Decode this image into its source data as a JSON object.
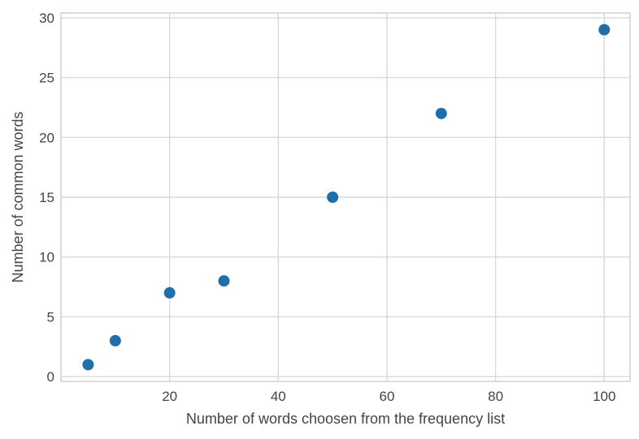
{
  "chart_data": {
    "type": "scatter",
    "title": "",
    "xlabel": "Number of words choosen from the frequency list",
    "ylabel": "Number of common words",
    "xlim": [
      0,
      104.75
    ],
    "ylim": [
      -0.4,
      30.4
    ],
    "x_ticks": [
      20,
      40,
      60,
      80,
      100
    ],
    "y_ticks": [
      0,
      5,
      10,
      15,
      20,
      25,
      30
    ],
    "grid": true,
    "legend": "none",
    "series": [
      {
        "color": "#1f6fad",
        "points": [
          {
            "x": 5,
            "y": 1
          },
          {
            "x": 10,
            "y": 3
          },
          {
            "x": 20,
            "y": 7
          },
          {
            "x": 30,
            "y": 8
          },
          {
            "x": 50,
            "y": 15
          },
          {
            "x": 70,
            "y": 22
          },
          {
            "x": 100,
            "y": 29
          }
        ]
      }
    ]
  }
}
